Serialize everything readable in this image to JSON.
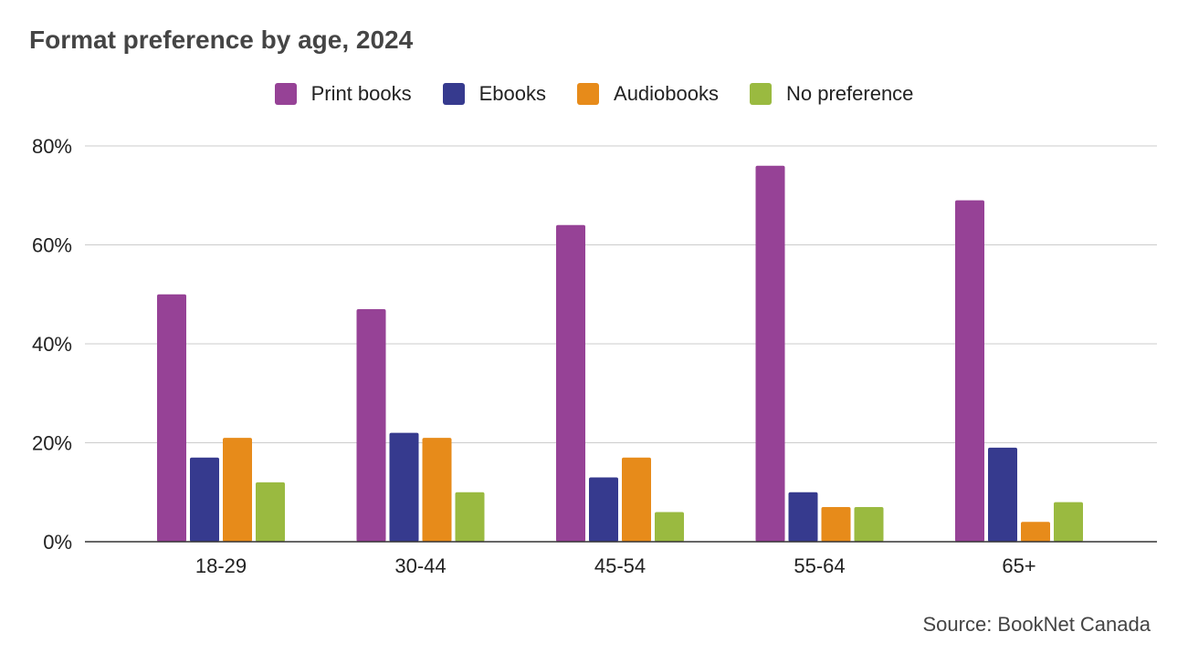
{
  "chart_data": {
    "type": "bar",
    "title": "Format preference by age, 2024",
    "xlabel": "",
    "ylabel": "",
    "categories": [
      "18-29",
      "30-44",
      "45-54",
      "55-64",
      "65+"
    ],
    "series": [
      {
        "name": "Print books",
        "color": "#964296",
        "values": [
          50,
          47,
          64,
          76,
          69
        ]
      },
      {
        "name": "Ebooks",
        "color": "#363a8e",
        "values": [
          17,
          22,
          13,
          10,
          19
        ]
      },
      {
        "name": "Audiobooks",
        "color": "#e78b1a",
        "values": [
          21,
          21,
          17,
          7,
          4
        ]
      },
      {
        "name": "No preference",
        "color": "#9aba40",
        "values": [
          12,
          10,
          6,
          7,
          8
        ]
      }
    ],
    "ylim": [
      0,
      80
    ],
    "yticks": [
      0,
      20,
      40,
      60,
      80
    ],
    "ytick_labels": [
      "0%",
      "20%",
      "40%",
      "60%",
      "80%"
    ],
    "grid": true,
    "legend_position": "top-center",
    "source": "Source: BookNet Canada"
  }
}
